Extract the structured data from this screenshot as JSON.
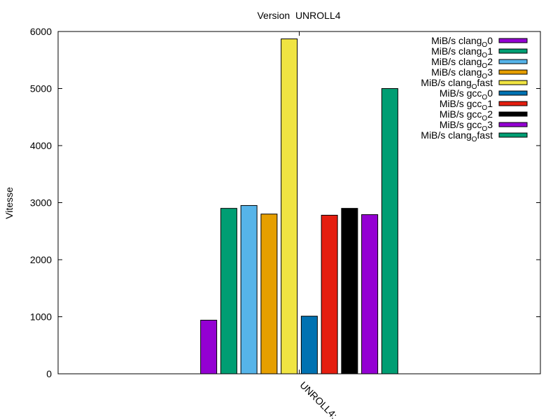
{
  "chart_data": {
    "type": "bar",
    "title": "Version  UNROLL4",
    "xlabel": "",
    "ylabel": "Vitesse",
    "ylim": [
      0,
      6000
    ],
    "yticks": [
      0,
      1000,
      2000,
      3000,
      4000,
      5000,
      6000
    ],
    "categories": [
      "UNROLL4:"
    ],
    "legend_position": "top-right",
    "series": [
      {
        "name": "MiB/s clang",
        "sub": "O",
        "suffix": "0",
        "values": [
          940
        ],
        "color": "#9400d3"
      },
      {
        "name": "MiB/s clang",
        "sub": "O",
        "suffix": "1",
        "values": [
          2900
        ],
        "color": "#009e73"
      },
      {
        "name": "MiB/s clang",
        "sub": "O",
        "suffix": "2",
        "values": [
          2950
        ],
        "color": "#56b4e9"
      },
      {
        "name": "MiB/s clang",
        "sub": "O",
        "suffix": "3",
        "values": [
          2800
        ],
        "color": "#e69f00"
      },
      {
        "name": "MiB/s clang",
        "sub": "O",
        "suffix": "fast",
        "values": [
          5870
        ],
        "color": "#f0e442"
      },
      {
        "name": "MiB/s gcc",
        "sub": "O",
        "suffix": "0",
        "values": [
          1010
        ],
        "color": "#0072b2"
      },
      {
        "name": "MiB/s gcc",
        "sub": "O",
        "suffix": "1",
        "values": [
          2780
        ],
        "color": "#e51e10"
      },
      {
        "name": "MiB/s gcc",
        "sub": "O",
        "suffix": "2",
        "values": [
          2900
        ],
        "color": "#000000"
      },
      {
        "name": "MiB/s gcc",
        "sub": "O",
        "suffix": "3",
        "values": [
          2790
        ],
        "color": "#9400d3"
      },
      {
        "name": "MiB/s clang",
        "sub": "O",
        "suffix": "fast",
        "values": [
          5000
        ],
        "color": "#009e73"
      }
    ]
  }
}
